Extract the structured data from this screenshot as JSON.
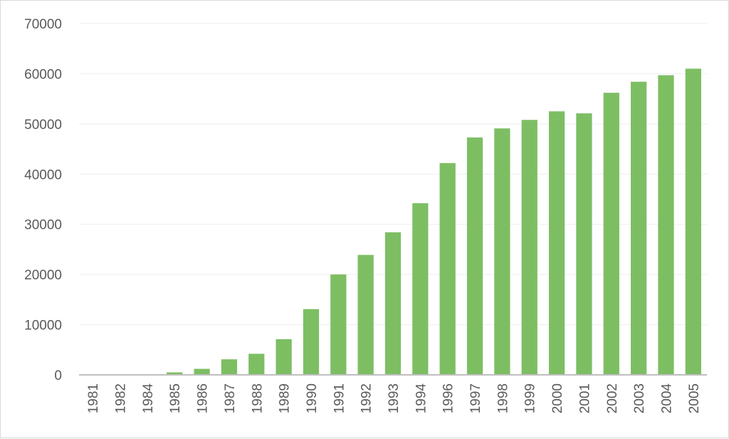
{
  "chart_data": {
    "type": "bar",
    "title": "",
    "xlabel": "",
    "ylabel": "",
    "categories": [
      "1981",
      "1982",
      "1984",
      "1985",
      "1986",
      "1987",
      "1988",
      "1989",
      "1990",
      "1991",
      "1992",
      "1993",
      "1994",
      "1996",
      "1997",
      "1998",
      "1999",
      "2000",
      "2001",
      "2002",
      "2003",
      "2004",
      "2005"
    ],
    "values": [
      50,
      80,
      120,
      500,
      1200,
      3100,
      4200,
      7100,
      13100,
      20000,
      23900,
      28400,
      34200,
      42200,
      47300,
      49100,
      50800,
      52500,
      52100,
      56200,
      58400,
      59700,
      61000
    ],
    "yticks": [
      "0",
      "10000",
      "20000",
      "30000",
      "40000",
      "50000",
      "60000",
      "70000"
    ],
    "ylim": [
      0,
      70000
    ],
    "grid": true,
    "legend": "none",
    "colors": {
      "bar": "#7dbe63",
      "grid": "#eeeeee",
      "axis": "#bfbfbf",
      "text": "#595959"
    }
  }
}
